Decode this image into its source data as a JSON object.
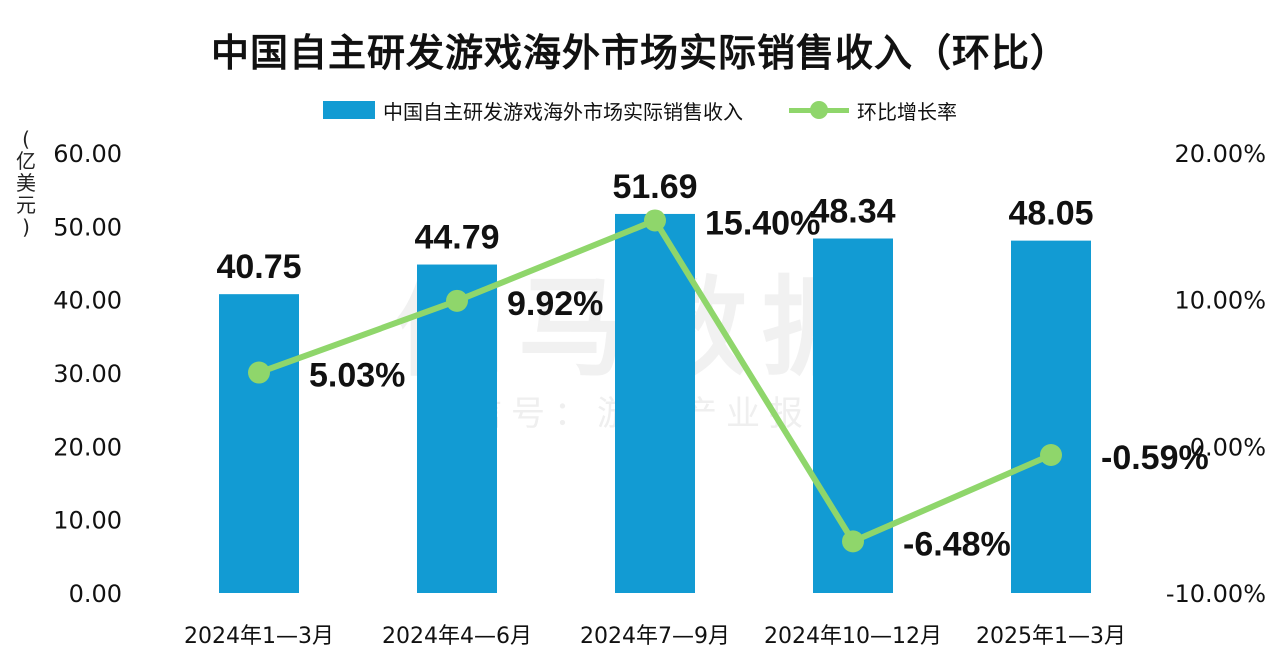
{
  "title": "中国自主研发游戏海外市场实际销售收入（环比）",
  "legend": {
    "bar_label": "中国自主研发游戏海外市场实际销售收入",
    "line_label": "环比增长率"
  },
  "unit_label": "（亿美元）",
  "watermark": {
    "main": "伽马数据",
    "sub": "微信号：游戏产业报告"
  },
  "colors": {
    "bar": "#129bd3",
    "line": "#8fd66b"
  },
  "chart_data": {
    "type": "bar",
    "categories": [
      "2024年1—3月",
      "2024年4—6月",
      "2024年7—9月",
      "2024年10—12月",
      "2025年1—3月"
    ],
    "series": [
      {
        "name": "中国自主研发游戏海外市场实际销售收入",
        "type": "bar",
        "axis": "left",
        "values": [
          40.75,
          44.79,
          51.69,
          48.34,
          48.05
        ],
        "labels": [
          "40.75",
          "44.79",
          "51.69",
          "48.34",
          "48.05"
        ]
      },
      {
        "name": "环比增长率",
        "type": "line",
        "axis": "right",
        "values": [
          5.03,
          9.92,
          15.4,
          -6.48,
          -0.59
        ],
        "labels": [
          "5.03%",
          "9.92%",
          "15.40%",
          "-6.48%",
          "-0.59%"
        ]
      }
    ],
    "left_axis": {
      "ylim": [
        0,
        60
      ],
      "ticks": [
        "0.00",
        "10.00",
        "20.00",
        "30.00",
        "40.00",
        "50.00",
        "60.00"
      ]
    },
    "right_axis": {
      "ylim": [
        -10,
        20
      ],
      "ticks": [
        "-10.00%",
        "0.00%",
        "10.00%",
        "20.00%"
      ]
    },
    "grid": false,
    "legend_position": "top"
  }
}
